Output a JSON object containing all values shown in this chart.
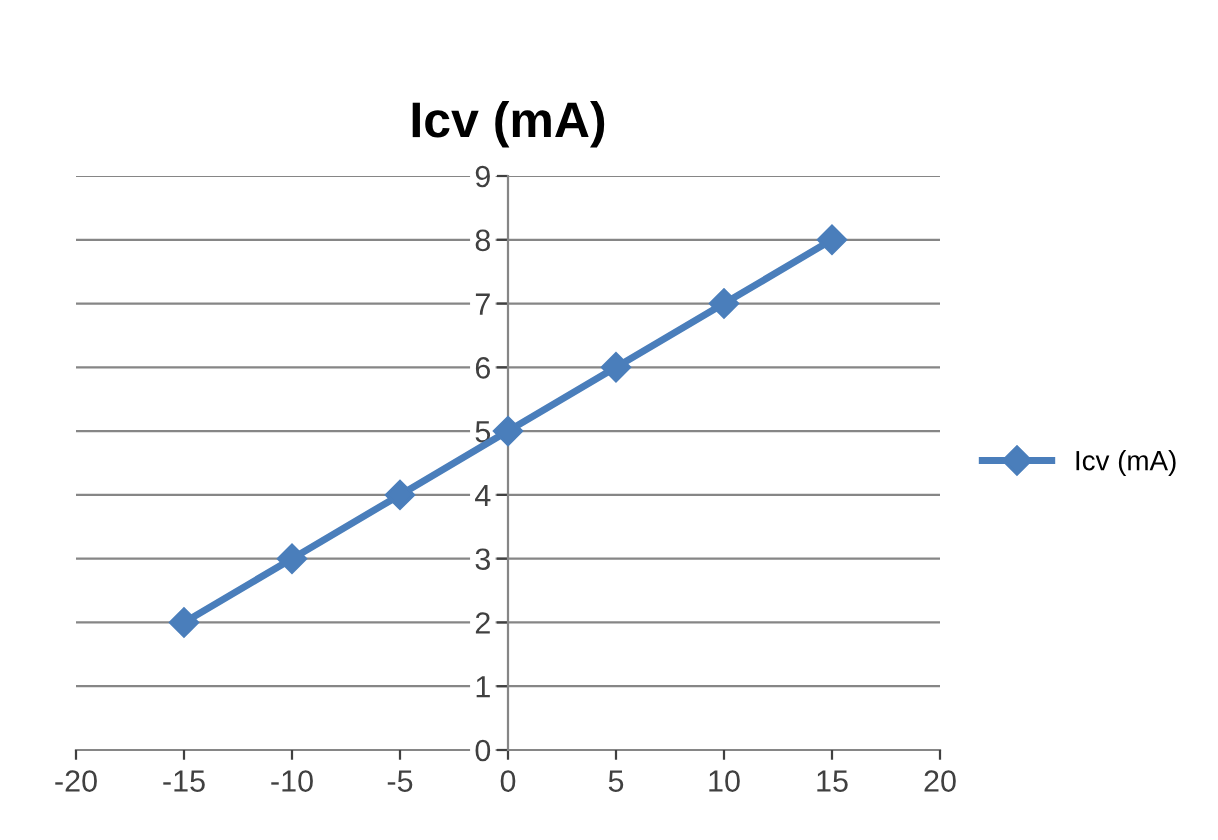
{
  "chart_data": {
    "type": "line",
    "title": "Icv (mA)",
    "x": [
      -15,
      -10,
      -5,
      0,
      5,
      10,
      15
    ],
    "series": [
      {
        "name": "Icv (mA)",
        "color": "#4a7ebb",
        "values": [
          2,
          3,
          4,
          5,
          6,
          7,
          8
        ]
      }
    ],
    "xlim": [
      -20,
      20
    ],
    "xticks": [
      -20,
      -15,
      -10,
      -5,
      0,
      5,
      10,
      15,
      20
    ],
    "ylim": [
      0,
      9
    ],
    "yticks": [
      0,
      1,
      2,
      3,
      4,
      5,
      6,
      7,
      8,
      9
    ],
    "grid": "y",
    "legend": "right",
    "marker": "diamond",
    "line_style": "solid"
  }
}
